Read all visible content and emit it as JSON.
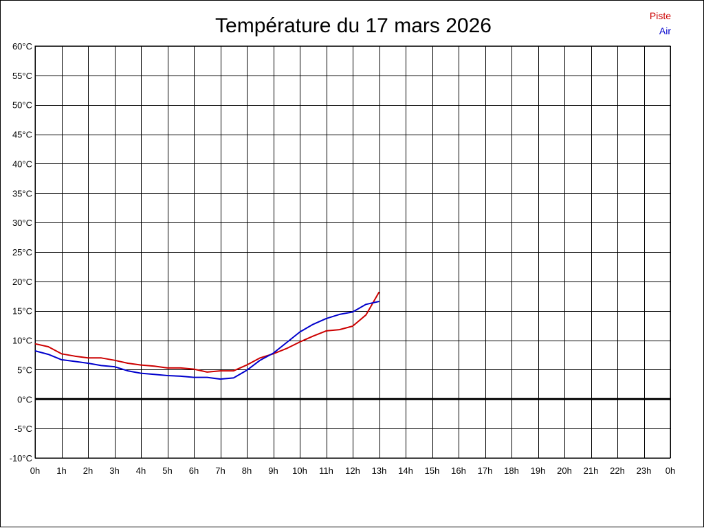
{
  "chart_data": {
    "type": "line",
    "title": "Température du 17 mars 2026",
    "xlabel": "",
    "ylabel": "",
    "x_unit": "hours",
    "xlim": [
      0,
      24
    ],
    "ylim": [
      -10,
      60
    ],
    "grid": true,
    "legend_position": "top-right",
    "x_tick_labels": [
      "0h",
      "1h",
      "2h",
      "3h",
      "4h",
      "5h",
      "6h",
      "7h",
      "8h",
      "9h",
      "10h",
      "11h",
      "12h",
      "13h",
      "14h",
      "15h",
      "16h",
      "17h",
      "18h",
      "19h",
      "20h",
      "21h",
      "22h",
      "23h",
      "0h"
    ],
    "y_tick_labels": [
      "60°C",
      "55°C",
      "50°C",
      "45°C",
      "40°C",
      "35°C",
      "30°C",
      "25°C",
      "20°C",
      "15°C",
      "10°C",
      "5°C",
      "0°C",
      "-5°C",
      "-10°C"
    ],
    "y_tick_values": [
      60,
      55,
      50,
      45,
      40,
      35,
      30,
      25,
      20,
      15,
      10,
      5,
      0,
      -5,
      -10
    ],
    "series": [
      {
        "name": "Piste",
        "color": "#cc0000",
        "x": [
          0,
          0.5,
          1,
          1.5,
          2,
          2.5,
          3,
          3.5,
          4,
          4.5,
          5,
          5.5,
          6,
          6.5,
          7,
          7.5,
          8,
          8.5,
          9,
          9.5,
          10,
          10.5,
          11,
          11.5,
          12,
          12.5,
          13
        ],
        "y": [
          9.4,
          8.9,
          7.7,
          7.3,
          7.0,
          7.0,
          6.6,
          6.1,
          5.8,
          5.6,
          5.3,
          5.3,
          5.1,
          4.6,
          4.8,
          4.8,
          5.8,
          7.0,
          7.7,
          8.6,
          9.7,
          10.7,
          11.6,
          11.8,
          12.4,
          14.3,
          18.2
        ]
      },
      {
        "name": "Air",
        "color": "#0000cc",
        "x": [
          0,
          0.5,
          1,
          1.5,
          2,
          2.5,
          3,
          3.5,
          4,
          4.5,
          5,
          5.5,
          6,
          6.5,
          7,
          7.5,
          8,
          8.5,
          9,
          9.5,
          10,
          10.5,
          11,
          11.5,
          12,
          12.5,
          13
        ],
        "y": [
          8.2,
          7.6,
          6.7,
          6.4,
          6.1,
          5.7,
          5.5,
          4.8,
          4.4,
          4.2,
          4.0,
          3.9,
          3.7,
          3.7,
          3.4,
          3.6,
          4.9,
          6.6,
          7.8,
          9.6,
          11.4,
          12.7,
          13.7,
          14.4,
          14.8,
          16.1,
          16.6
        ]
      }
    ]
  }
}
